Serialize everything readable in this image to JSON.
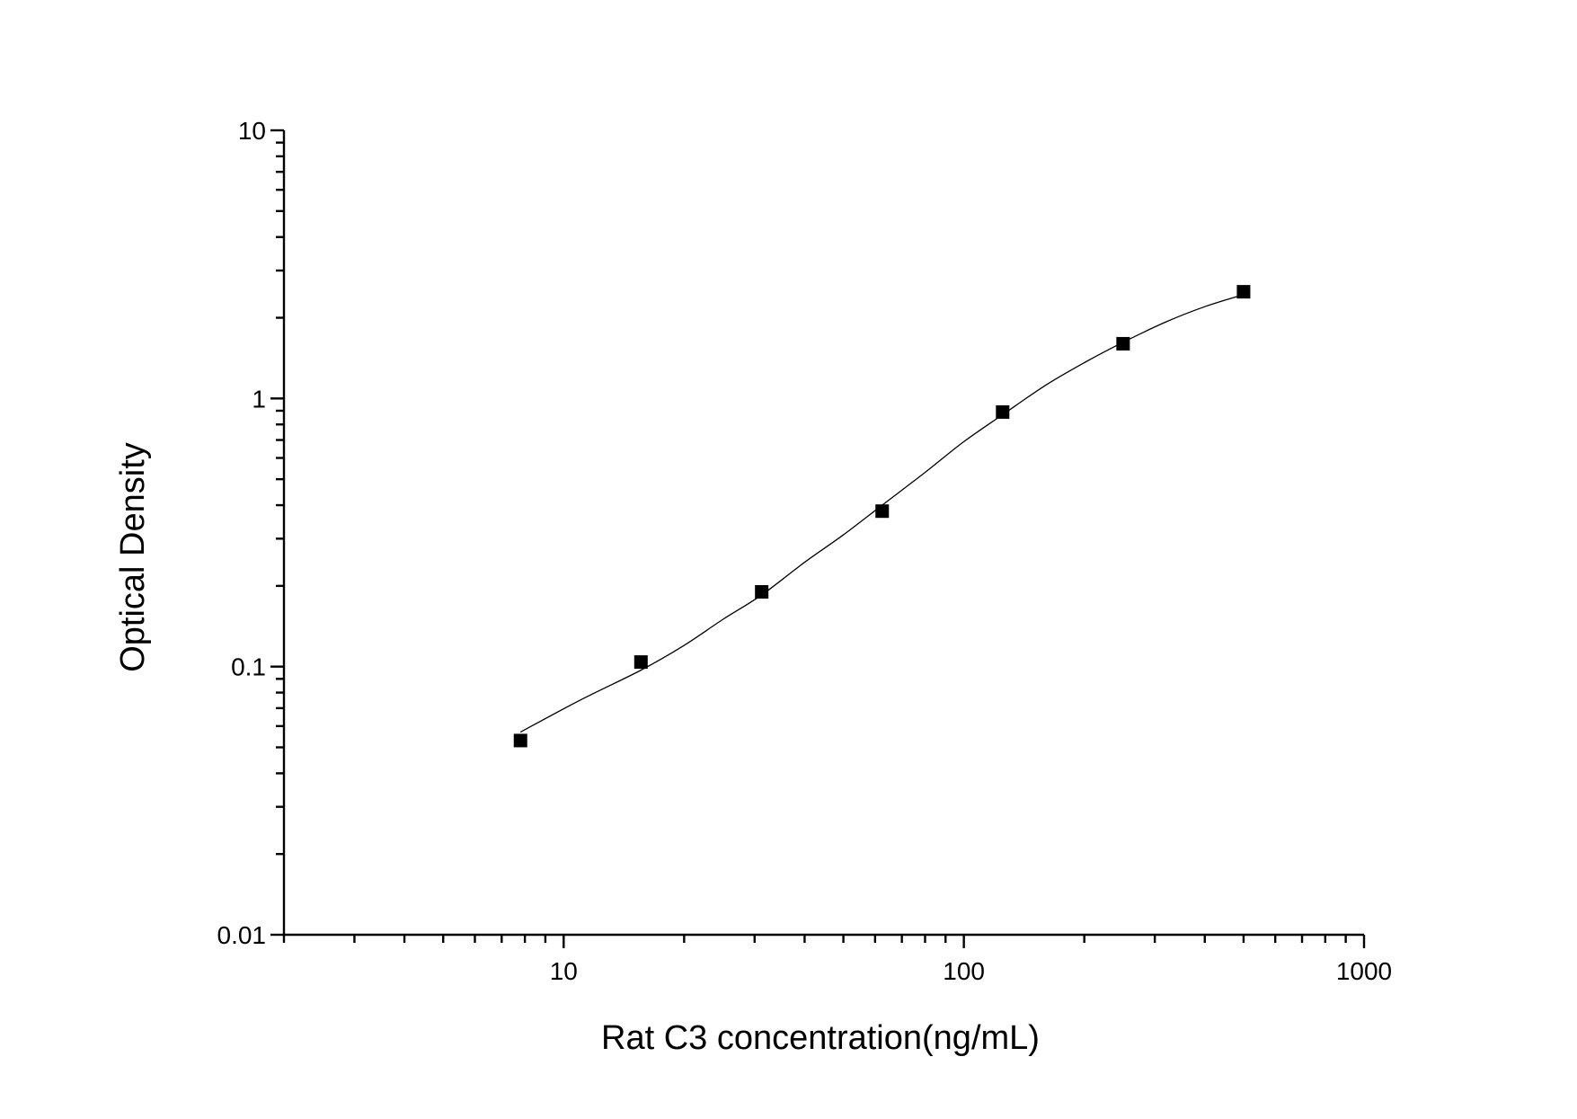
{
  "chart_data": {
    "type": "scatter",
    "title": "",
    "xlabel": "Rat C3 concentration(ng/mL)",
    "ylabel": "Optical Density",
    "x_scale": "log",
    "y_scale": "log",
    "xlim": [
      2,
      1000
    ],
    "ylim": [
      0.01,
      10
    ],
    "x_ticks": [
      {
        "value": 10,
        "label": "10"
      },
      {
        "value": 100,
        "label": "100"
      },
      {
        "value": 1000,
        "label": "1000"
      }
    ],
    "y_ticks": [
      {
        "value": 0.01,
        "label": "0.01"
      },
      {
        "value": 0.1,
        "label": "0.1"
      },
      {
        "value": 1,
        "label": "1"
      },
      {
        "value": 10,
        "label": "10"
      }
    ],
    "grid": false,
    "legend": "none",
    "series": [
      {
        "marker": "square",
        "color": "#000000",
        "x": [
          7.8,
          15.6,
          31.25,
          62.5,
          125,
          250,
          500
        ],
        "y": [
          0.053,
          0.104,
          0.19,
          0.38,
          0.89,
          1.6,
          2.5
        ]
      }
    ],
    "fit_curve": {
      "color": "#000000",
      "x": [
        7.8,
        11,
        15.6,
        20,
        25,
        31.25,
        40,
        50,
        62.5,
        80,
        100,
        125,
        160,
        200,
        250,
        320,
        400,
        500
      ],
      "y": [
        0.057,
        0.075,
        0.097,
        0.12,
        0.15,
        0.185,
        0.245,
        0.31,
        0.4,
        0.53,
        0.69,
        0.87,
        1.12,
        1.36,
        1.62,
        1.93,
        2.2,
        2.44
      ]
    }
  }
}
